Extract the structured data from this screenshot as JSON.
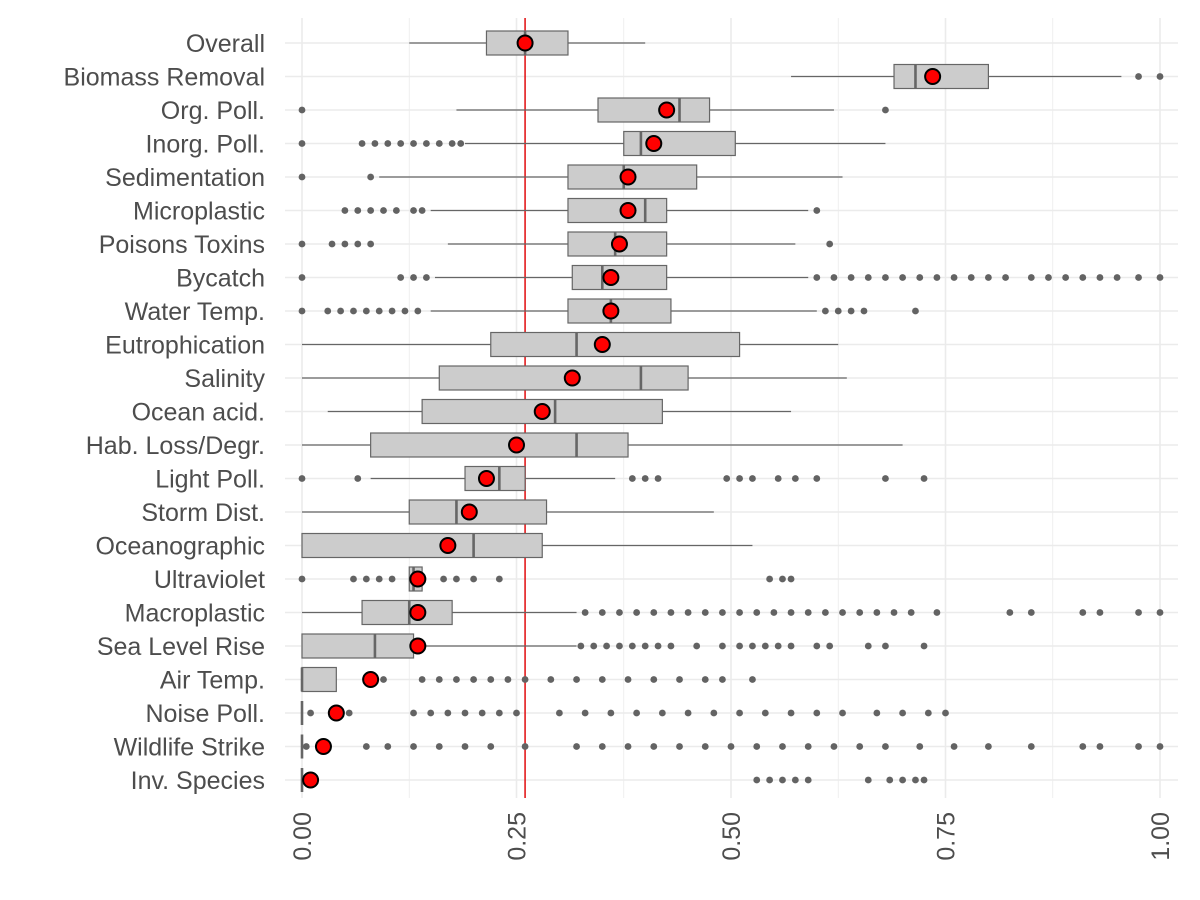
{
  "chart_data": {
    "type": "boxplot",
    "title": "",
    "xlabel": "",
    "ylabel": "",
    "xlim": [
      0,
      1
    ],
    "x_ticks": [
      0,
      0.25,
      0.5,
      0.75,
      1
    ],
    "x_tick_labels": [
      "0.00",
      "0.25",
      "0.50",
      "0.75",
      "1.00"
    ],
    "grid": true,
    "legend": "none",
    "reference_line": {
      "value": 0.26,
      "color": "#e31a1c"
    },
    "colors": {
      "box_fill": "#cccccc",
      "box_stroke": "#666666",
      "outlier": "#636363",
      "mean_point": "#ff0000",
      "mean_stroke": "#000000",
      "grid": "#ebebeb"
    },
    "categories": [
      {
        "name": "Overall",
        "whisker_low": 0.125,
        "q1": 0.215,
        "median": 0.26,
        "q3": 0.31,
        "whisker_high": 0.4,
        "mean": 0.26,
        "outliers": []
      },
      {
        "name": "Biomass Removal",
        "whisker_low": 0.57,
        "q1": 0.69,
        "median": 0.715,
        "q3": 0.8,
        "whisker_high": 0.955,
        "mean": 0.735,
        "outliers": [
          0.975,
          1.0
        ]
      },
      {
        "name": "Org. Poll.",
        "whisker_low": 0.18,
        "q1": 0.345,
        "median": 0.44,
        "q3": 0.475,
        "whisker_high": 0.62,
        "mean": 0.425,
        "outliers": [
          0.0,
          0.68
        ]
      },
      {
        "name": "Inorg. Poll.",
        "whisker_low": 0.19,
        "q1": 0.375,
        "median": 0.395,
        "q3": 0.505,
        "whisker_high": 0.68,
        "mean": 0.41,
        "outliers": [
          0.0,
          0.07,
          0.085,
          0.1,
          0.115,
          0.13,
          0.145,
          0.16,
          0.175,
          0.185
        ]
      },
      {
        "name": "Sedimentation",
        "whisker_low": 0.09,
        "q1": 0.31,
        "median": 0.375,
        "q3": 0.46,
        "whisker_high": 0.63,
        "mean": 0.38,
        "outliers": [
          0.0,
          0.08
        ]
      },
      {
        "name": "Microplastic",
        "whisker_low": 0.15,
        "q1": 0.31,
        "median": 0.4,
        "q3": 0.425,
        "whisker_high": 0.59,
        "mean": 0.38,
        "outliers": [
          0.05,
          0.065,
          0.08,
          0.095,
          0.11,
          0.13,
          0.14,
          0.6
        ]
      },
      {
        "name": "Poisons Toxins",
        "whisker_low": 0.17,
        "q1": 0.31,
        "median": 0.365,
        "q3": 0.425,
        "whisker_high": 0.575,
        "mean": 0.37,
        "outliers": [
          0.0,
          0.035,
          0.05,
          0.065,
          0.08,
          0.615
        ]
      },
      {
        "name": "Bycatch",
        "whisker_low": 0.155,
        "q1": 0.315,
        "median": 0.35,
        "q3": 0.425,
        "whisker_high": 0.59,
        "mean": 0.36,
        "outliers": [
          0.0,
          0.115,
          0.13,
          0.145,
          0.6,
          0.62,
          0.64,
          0.66,
          0.68,
          0.7,
          0.72,
          0.74,
          0.76,
          0.78,
          0.8,
          0.82,
          0.85,
          0.87,
          0.89,
          0.91,
          0.93,
          0.95,
          0.975,
          1.0
        ]
      },
      {
        "name": "Water Temp.",
        "whisker_low": 0.15,
        "q1": 0.31,
        "median": 0.36,
        "q3": 0.43,
        "whisker_high": 0.6,
        "mean": 0.36,
        "outliers": [
          0.0,
          0.03,
          0.045,
          0.06,
          0.075,
          0.09,
          0.105,
          0.12,
          0.135,
          0.61,
          0.625,
          0.64,
          0.655,
          0.715
        ]
      },
      {
        "name": "Eutrophication",
        "whisker_low": 0.0,
        "q1": 0.22,
        "median": 0.32,
        "q3": 0.51,
        "whisker_high": 0.625,
        "mean": 0.35,
        "outliers": []
      },
      {
        "name": "Salinity",
        "whisker_low": 0.0,
        "q1": 0.16,
        "median": 0.395,
        "q3": 0.45,
        "whisker_high": 0.635,
        "mean": 0.315,
        "outliers": []
      },
      {
        "name": "Ocean acid.",
        "whisker_low": 0.03,
        "q1": 0.14,
        "median": 0.295,
        "q3": 0.42,
        "whisker_high": 0.57,
        "mean": 0.28,
        "outliers": []
      },
      {
        "name": "Hab. Loss/Degr.",
        "whisker_low": 0.0,
        "q1": 0.08,
        "median": 0.32,
        "q3": 0.38,
        "whisker_high": 0.7,
        "mean": 0.25,
        "outliers": []
      },
      {
        "name": "Light Poll.",
        "whisker_low": 0.08,
        "q1": 0.19,
        "median": 0.23,
        "q3": 0.26,
        "whisker_high": 0.365,
        "mean": 0.215,
        "outliers": [
          0.0,
          0.065,
          0.385,
          0.4,
          0.415,
          0.495,
          0.51,
          0.525,
          0.555,
          0.575,
          0.6,
          0.68,
          0.725
        ]
      },
      {
        "name": "Storm Dist.",
        "whisker_low": 0.0,
        "q1": 0.125,
        "median": 0.18,
        "q3": 0.285,
        "whisker_high": 0.48,
        "mean": 0.195,
        "outliers": []
      },
      {
        "name": "Oceanographic",
        "whisker_low": 0.0,
        "q1": 0.0,
        "median": 0.2,
        "q3": 0.28,
        "whisker_high": 0.525,
        "mean": 0.17,
        "outliers": []
      },
      {
        "name": "Ultraviolet",
        "whisker_low": 0.125,
        "q1": 0.125,
        "median": 0.13,
        "q3": 0.14,
        "whisker_high": 0.14,
        "mean": 0.135,
        "outliers": [
          0.0,
          0.06,
          0.075,
          0.09,
          0.105,
          0.165,
          0.18,
          0.2,
          0.23,
          0.545,
          0.56,
          0.57
        ]
      },
      {
        "name": "Macroplastic",
        "whisker_low": 0.0,
        "q1": 0.07,
        "median": 0.125,
        "q3": 0.175,
        "whisker_high": 0.32,
        "mean": 0.135,
        "outliers": [
          0.33,
          0.35,
          0.37,
          0.39,
          0.41,
          0.43,
          0.45,
          0.47,
          0.49,
          0.51,
          0.53,
          0.55,
          0.57,
          0.59,
          0.61,
          0.63,
          0.65,
          0.67,
          0.69,
          0.71,
          0.74,
          0.825,
          0.85,
          0.91,
          0.93,
          0.975,
          1.0
        ]
      },
      {
        "name": "Sea Level Rise",
        "whisker_low": 0.0,
        "q1": 0.0,
        "median": 0.085,
        "q3": 0.13,
        "whisker_high": 0.32,
        "mean": 0.135,
        "outliers": [
          0.325,
          0.34,
          0.355,
          0.37,
          0.385,
          0.4,
          0.415,
          0.43,
          0.46,
          0.49,
          0.51,
          0.525,
          0.54,
          0.555,
          0.57,
          0.6,
          0.615,
          0.66,
          0.68,
          0.725
        ]
      },
      {
        "name": "Air Temp.",
        "whisker_low": 0.0,
        "q1": 0.0,
        "median": 0.0,
        "q3": 0.04,
        "whisker_high": 0.04,
        "mean": 0.08,
        "outliers": [
          0.095,
          0.14,
          0.16,
          0.18,
          0.2,
          0.22,
          0.24,
          0.26,
          0.29,
          0.32,
          0.35,
          0.38,
          0.41,
          0.44,
          0.47,
          0.49,
          0.525
        ]
      },
      {
        "name": "Noise Poll.",
        "whisker_low": 0.0,
        "q1": 0.0,
        "median": 0.0,
        "q3": 0.0,
        "whisker_high": 0.0,
        "mean": 0.04,
        "outliers": [
          0.01,
          0.055,
          0.13,
          0.15,
          0.17,
          0.19,
          0.21,
          0.23,
          0.25,
          0.3,
          0.33,
          0.36,
          0.39,
          0.42,
          0.45,
          0.48,
          0.51,
          0.54,
          0.57,
          0.6,
          0.63,
          0.67,
          0.7,
          0.73,
          0.75
        ]
      },
      {
        "name": "Wildlife Strike",
        "whisker_low": 0.0,
        "q1": 0.0,
        "median": 0.0,
        "q3": 0.0,
        "whisker_high": 0.0,
        "mean": 0.025,
        "outliers": [
          0.005,
          0.075,
          0.1,
          0.13,
          0.16,
          0.19,
          0.22,
          0.26,
          0.32,
          0.35,
          0.38,
          0.41,
          0.44,
          0.47,
          0.5,
          0.53,
          0.56,
          0.59,
          0.62,
          0.65,
          0.68,
          0.72,
          0.76,
          0.8,
          0.85,
          0.91,
          0.93,
          0.975,
          1.0
        ]
      },
      {
        "name": "Inv. Species",
        "whisker_low": 0.0,
        "q1": 0.0,
        "median": 0.0,
        "q3": 0.0,
        "whisker_high": 0.0,
        "mean": 0.01,
        "outliers": [
          0.53,
          0.545,
          0.56,
          0.575,
          0.59,
          0.66,
          0.685,
          0.7,
          0.715,
          0.725
        ]
      }
    ]
  }
}
